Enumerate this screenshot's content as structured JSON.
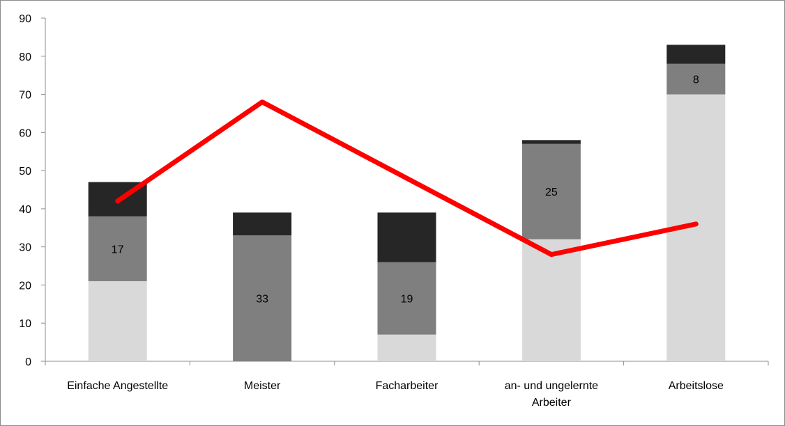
{
  "chart_data": {
    "type": "bar",
    "stacked": true,
    "categories": [
      "Einfache Angestellte",
      "Meister",
      "Facharbeiter",
      "an- und ungelernte Arbeiter",
      "Arbeitslose"
    ],
    "category_label_lines": [
      [
        "Einfache Angestellte"
      ],
      [
        "Meister"
      ],
      [
        "Facharbeiter"
      ],
      [
        "an- und ungelernte",
        "Arbeiter"
      ],
      [
        "Arbeitslose"
      ]
    ],
    "series": [
      {
        "values": [
          21,
          0,
          7,
          32,
          70
        ],
        "color": "#d9d9d9"
      },
      {
        "values": [
          17,
          33,
          19,
          25,
          8
        ],
        "color": "#7f7f7f"
      },
      {
        "values": [
          9,
          6,
          13,
          1,
          5
        ],
        "color": "#262626"
      }
    ],
    "data_labels": [
      "17",
      "33",
      "19",
      "25",
      "8"
    ],
    "line": {
      "values": [
        42,
        68,
        null,
        28,
        36
      ],
      "color": "#ff0000"
    },
    "ylim": [
      0,
      90
    ],
    "yticks": [
      "0",
      "10",
      "20",
      "30",
      "40",
      "50",
      "60",
      "70",
      "80",
      "90"
    ],
    "title": "",
    "xlabel": "",
    "ylabel": "",
    "grid": false,
    "legend": "none"
  }
}
